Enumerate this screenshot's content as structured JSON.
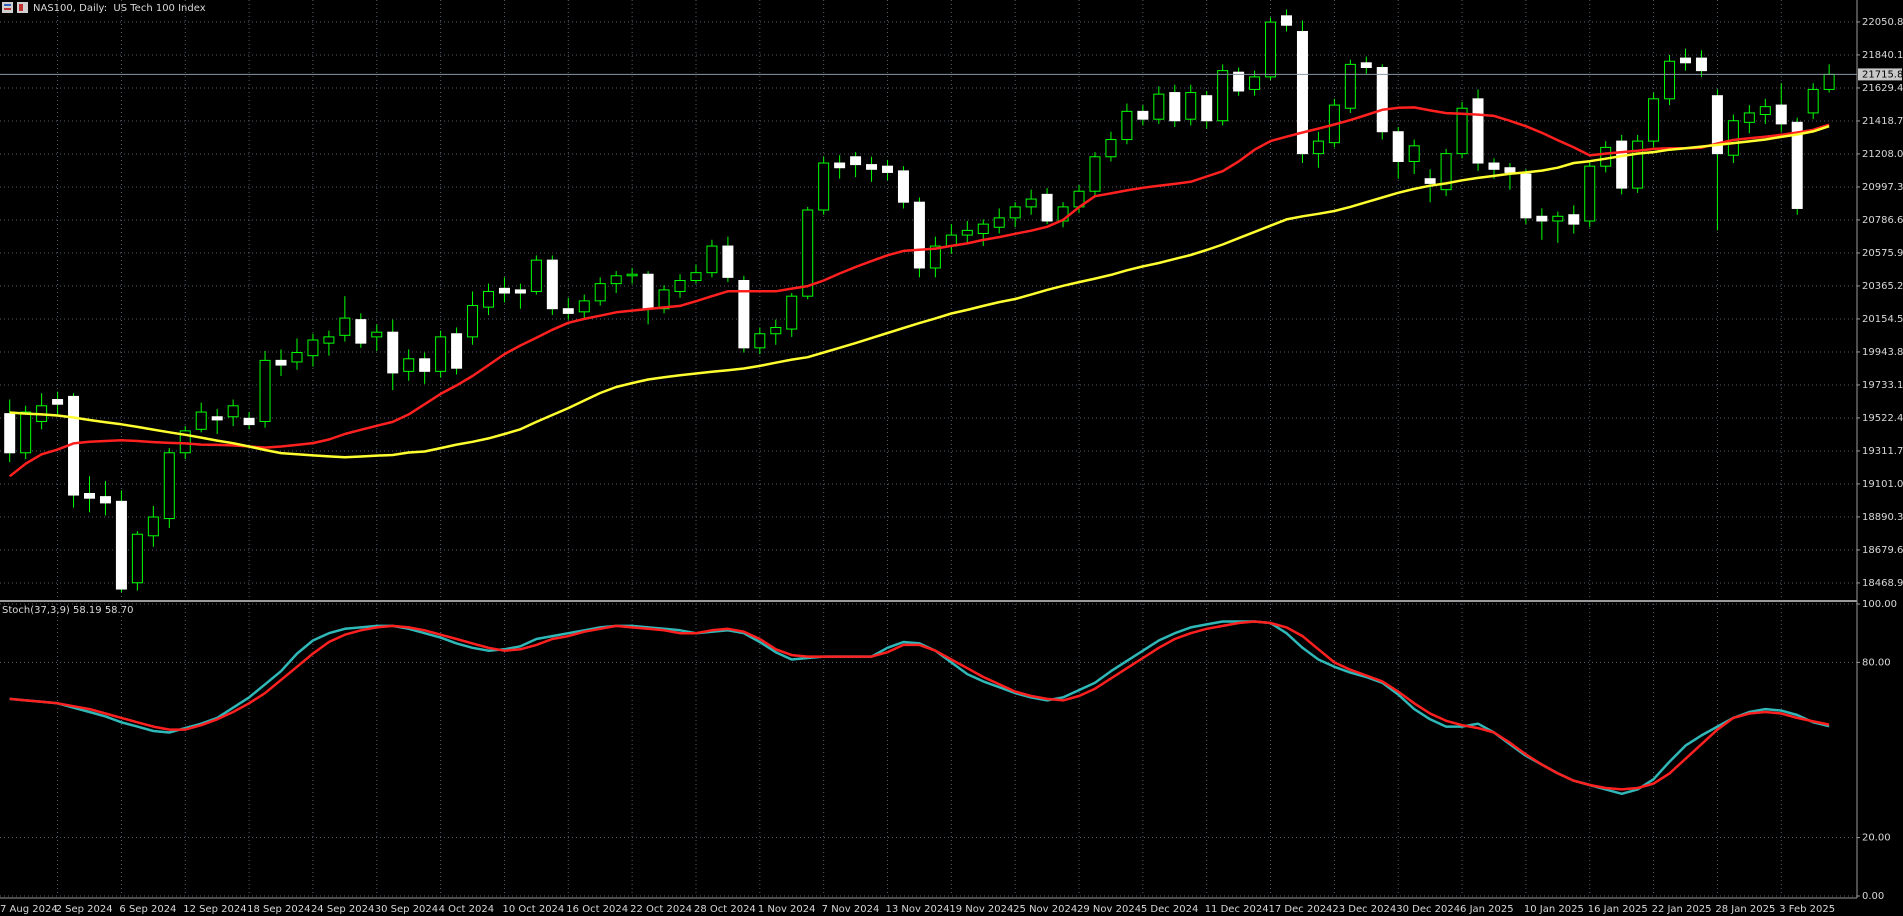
{
  "chart_data": [
    {
      "type": "candlestick",
      "title": "NAS100, Daily:  US Tech 100 Index",
      "categories": [
        "7 Aug 2024",
        null,
        null,
        "2 Sep 2024",
        null,
        null,
        null,
        "6 Sep 2024",
        null,
        null,
        null,
        "12 Sep 2024",
        null,
        null,
        null,
        "18 Sep 2024",
        null,
        null,
        null,
        "24 Sep 2024",
        null,
        null,
        null,
        "30 Sep 2024",
        null,
        null,
        null,
        "4 Oct 2024",
        null,
        null,
        null,
        "10 Oct 2024",
        null,
        null,
        null,
        "16 Oct 2024",
        null,
        null,
        null,
        "22 Oct 2024",
        null,
        null,
        null,
        "28 Oct 2024",
        null,
        null,
        null,
        "1 Nov 2024",
        null,
        null,
        null,
        "7 Nov 2024",
        null,
        null,
        null,
        "13 Nov 2024",
        null,
        null,
        null,
        "19 Nov 2024",
        null,
        null,
        null,
        "25 Nov 2024",
        null,
        null,
        null,
        "29 Nov 2024",
        null,
        null,
        null,
        "5 Dec 2024",
        null,
        null,
        null,
        "11 Dec 2024",
        null,
        null,
        null,
        "17 Dec 2024",
        null,
        null,
        null,
        "23 Dec 2024",
        null,
        null,
        null,
        "30 Dec 2024",
        null,
        null,
        null,
        "6 Jan 2025",
        null,
        null,
        null,
        "10 Jan 2025",
        null,
        null,
        null,
        "16 Jan 2025",
        null,
        null,
        null,
        "22 Jan 2025",
        null,
        null,
        null,
        "28 Jan 2025",
        null,
        null,
        null,
        "3 Feb 2025",
        null,
        null,
        null
      ],
      "open": [
        19550,
        19300,
        19500,
        19640,
        19660,
        19040,
        19020,
        18990,
        18470,
        18770,
        18880,
        19300,
        19450,
        19530,
        19530,
        19520,
        19500,
        19890,
        19880,
        19920,
        20000,
        20050,
        20150,
        20040,
        20070,
        19820,
        19900,
        19820,
        20060,
        20040,
        20230,
        20350,
        20340,
        20330,
        20530,
        20220,
        20200,
        20270,
        20380,
        20430,
        20440,
        20220,
        20330,
        20400,
        20450,
        20620,
        20400,
        19970,
        20060,
        20090,
        20300,
        20850,
        21150,
        21190,
        21140,
        21130,
        21100,
        20900,
        20480,
        20620,
        20690,
        20700,
        20740,
        20800,
        20870,
        20950,
        20780,
        20870,
        20970,
        21190,
        21300,
        21480,
        21430,
        21600,
        21430,
        21580,
        21420,
        21730,
        21620,
        21700,
        22090,
        21990,
        21210,
        21280,
        21500,
        21790,
        21760,
        21350,
        21160,
        21050,
        20980,
        21210,
        21560,
        21150,
        21120,
        21080,
        20810,
        20780,
        20820,
        20780,
        21130,
        21290,
        20990,
        21290,
        21560,
        21820,
        21820,
        21580,
        21200,
        21410,
        21460,
        21520,
        21410,
        21470,
        21620
      ],
      "high": [
        19640,
        19600,
        19680,
        19690,
        19680,
        19150,
        19120,
        19060,
        18800,
        18960,
        19330,
        19470,
        19620,
        19580,
        19640,
        19560,
        19950,
        19960,
        20030,
        20060,
        20080,
        20300,
        20190,
        20120,
        20150,
        19960,
        19940,
        20080,
        20100,
        20330,
        20380,
        20420,
        20380,
        20560,
        20560,
        20290,
        20310,
        20420,
        20460,
        20480,
        20460,
        20370,
        20440,
        20500,
        20660,
        20680,
        20430,
        20100,
        20150,
        20320,
        20870,
        21190,
        21200,
        21220,
        21190,
        21170,
        21130,
        20930,
        20680,
        20760,
        20780,
        20790,
        20860,
        20900,
        20980,
        20990,
        20900,
        21010,
        21220,
        21350,
        21530,
        21520,
        21640,
        21650,
        21650,
        21610,
        21780,
        21760,
        21740,
        22080,
        22130,
        22060,
        21350,
        21560,
        21810,
        21830,
        21780,
        21380,
        21300,
        21110,
        21240,
        21540,
        21620,
        21180,
        21150,
        21110,
        20860,
        20840,
        20880,
        21160,
        21290,
        21330,
        21330,
        21600,
        21840,
        21880,
        21870,
        21620,
        21460,
        21520,
        21560,
        21660,
        21440,
        21660,
        21780
      ],
      "low": [
        19240,
        19260,
        19450,
        19540,
        18950,
        18920,
        18900,
        18410,
        18420,
        18700,
        18820,
        19260,
        19430,
        19420,
        19470,
        19450,
        19460,
        19790,
        19830,
        19850,
        19920,
        20010,
        19970,
        19950,
        19700,
        19760,
        19740,
        19780,
        19800,
        19990,
        20180,
        20260,
        20220,
        20310,
        20180,
        20150,
        20160,
        20240,
        20320,
        20380,
        20120,
        20190,
        20290,
        20380,
        20420,
        20390,
        19940,
        19930,
        19990,
        20040,
        20280,
        20820,
        21050,
        21060,
        21030,
        21040,
        20860,
        20420,
        20420,
        20570,
        20640,
        20620,
        20700,
        20740,
        20820,
        20760,
        20740,
        20830,
        20940,
        21160,
        21270,
        21390,
        21400,
        21380,
        21390,
        21370,
        21390,
        21580,
        21580,
        21680,
        21990,
        21150,
        21120,
        21250,
        21470,
        21720,
        21300,
        21050,
        21080,
        20900,
        20940,
        21180,
        21100,
        21050,
        20980,
        20760,
        20660,
        20640,
        20700,
        20740,
        21090,
        20950,
        20960,
        21250,
        21520,
        21740,
        21700,
        20720,
        21150,
        21340,
        21400,
        21350,
        20820,
        21430,
        21600
      ],
      "close": [
        19300,
        19560,
        19600,
        19610,
        19030,
        19010,
        18980,
        18430,
        18780,
        18890,
        19300,
        19440,
        19560,
        19510,
        19600,
        19480,
        19890,
        19860,
        19940,
        20020,
        20040,
        20160,
        20000,
        20070,
        19810,
        19900,
        19820,
        20040,
        19840,
        20240,
        20330,
        20320,
        20320,
        20530,
        20220,
        20190,
        20270,
        20380,
        20430,
        20440,
        20220,
        20340,
        20400,
        20450,
        20620,
        20420,
        19970,
        20060,
        20100,
        20300,
        20850,
        21150,
        21120,
        21140,
        21110,
        21090,
        20900,
        20480,
        20620,
        20690,
        20720,
        20760,
        20800,
        20870,
        20920,
        20780,
        20870,
        20970,
        21190,
        21300,
        21480,
        21430,
        21590,
        21420,
        21600,
        21420,
        21740,
        21610,
        21700,
        22050,
        22030,
        21210,
        21290,
        21520,
        21780,
        21760,
        21350,
        21160,
        21260,
        21020,
        21210,
        21500,
        21150,
        21110,
        21090,
        20800,
        20780,
        20810,
        20760,
        21130,
        21250,
        20990,
        21290,
        21560,
        21800,
        21790,
        21740,
        21210,
        21420,
        21470,
        21510,
        21400,
        20860,
        21620,
        21715.8
      ],
      "bull_fill": "#000000",
      "bear_fill": "#ffffff",
      "candle_color": "#00ff00",
      "series": [
        {
          "color": "#ff2020",
          "values": [
            19150,
            19230,
            19290,
            19320,
            19360,
            19370,
            19375,
            19380,
            19375,
            19368,
            19363,
            19360,
            19352,
            19350,
            19347,
            19340,
            19333,
            19340,
            19350,
            19362,
            19385,
            19420,
            19447,
            19472,
            19497,
            19545,
            19610,
            19676,
            19730,
            19790,
            19860,
            19930,
            19985,
            20035,
            20085,
            20130,
            20155,
            20175,
            20197,
            20208,
            20218,
            20228,
            20238,
            20268,
            20300,
            20331,
            20331,
            20331,
            20331,
            20348,
            20364,
            20400,
            20445,
            20486,
            20524,
            20561,
            20589,
            20596,
            20604,
            20621,
            20637,
            20659,
            20677,
            20698,
            20718,
            20743,
            20787,
            20868,
            20938,
            20956,
            20975,
            20992,
            21005,
            21017,
            21030,
            21064,
            21098,
            21160,
            21235,
            21290,
            21318,
            21345,
            21370,
            21396,
            21424,
            21457,
            21490,
            21503,
            21505,
            21486,
            21469,
            21465,
            21459,
            21451,
            21420,
            21385,
            21343,
            21296,
            21250,
            21199,
            21210,
            21220,
            21229,
            21240,
            21245,
            21245,
            21248,
            21275,
            21297,
            21308,
            21318,
            21330,
            21345,
            21362,
            21395
          ]
        },
        {
          "color": "#ffff30",
          "values": [
            19557,
            19550,
            19545,
            19538,
            19525,
            19509,
            19495,
            19482,
            19465,
            19448,
            19431,
            19415,
            19397,
            19378,
            19361,
            19340,
            19318,
            19298,
            19290,
            19283,
            19277,
            19272,
            19276,
            19282,
            19286,
            19302,
            19308,
            19330,
            19352,
            19370,
            19392,
            19420,
            19450,
            19497,
            19541,
            19585,
            19634,
            19682,
            19720,
            19745,
            19768,
            19782,
            19795,
            19806,
            19817,
            19827,
            19838,
            19855,
            19875,
            19895,
            19910,
            19940,
            19970,
            20000,
            20032,
            20065,
            20097,
            20128,
            20158,
            20189,
            20212,
            20238,
            20262,
            20282,
            20310,
            20340,
            20366,
            20390,
            20412,
            20436,
            20465,
            20490,
            20512,
            20538,
            20563,
            20595,
            20630,
            20670,
            20710,
            20750,
            20790,
            20810,
            20826,
            20844,
            20870,
            20900,
            20930,
            20960,
            20985,
            21005,
            21020,
            21040,
            21055,
            21068,
            21082,
            21090,
            21102,
            21120,
            21150,
            21162,
            21178,
            21195,
            21210,
            21220,
            21235,
            21245,
            21255,
            21266,
            21277,
            21288,
            21300,
            21317,
            21332,
            21352,
            21385
          ]
        }
      ],
      "last_price": 21715.8,
      "ylim": [
        18360,
        22191
      ],
      "yticks": [
        22050.8,
        21840.1,
        21629.4,
        21418.7,
        {
          "value": 21208,
          "label": "21208.0"
        },
        20997.3,
        20786.6,
        20575.9,
        20365.2,
        20154.5,
        19943.8,
        19733.1,
        19522.4,
        19311.7,
        {
          "value": 19101,
          "label": "19101.0"
        },
        18890.3,
        18679.6,
        18468.9
      ],
      "grid": true
    },
    {
      "type": "line",
      "title": "Stoch(37,3,9) 58.19 58.70",
      "series": [
        {
          "color": "#30b8b8",
          "values": [
            67.5,
            67,
            66.5,
            66,
            64.5,
            63,
            61.5,
            59.5,
            58,
            56.5,
            56,
            57.5,
            59,
            61,
            64.5,
            68,
            72.5,
            77,
            83,
            87.5,
            90,
            91.5,
            92,
            92.5,
            92.5,
            91.5,
            90,
            88.5,
            86.5,
            85,
            84,
            84.5,
            85.5,
            88,
            89,
            90,
            91,
            92,
            92.5,
            92.5,
            92,
            91.5,
            91,
            90,
            90.5,
            91,
            90,
            87,
            83.5,
            81,
            81.5,
            82,
            82,
            82,
            82,
            85,
            87,
            86.5,
            84,
            80,
            76,
            73.5,
            71.5,
            69.5,
            68,
            67,
            68,
            70.5,
            73,
            77,
            80.5,
            84,
            87.5,
            90,
            92,
            93,
            94,
            94,
            94,
            93.5,
            90,
            85,
            81,
            78.5,
            76.5,
            75,
            73,
            69,
            64,
            60.5,
            58,
            58,
            59,
            56,
            52,
            48,
            45,
            42,
            39.5,
            38,
            36.5,
            35,
            36.5,
            40,
            46,
            51.5,
            55,
            58,
            61,
            63,
            64,
            63.5,
            62,
            59.5,
            58.19
          ]
        },
        {
          "color": "#ff2020",
          "values": [
            67.5,
            67,
            66.5,
            66,
            65,
            64,
            62.5,
            61,
            59.5,
            58,
            57,
            57,
            58.5,
            60.5,
            63,
            66,
            69.5,
            74,
            78.5,
            83,
            87,
            89.5,
            91,
            92,
            92.5,
            92,
            91,
            89.5,
            88,
            86.5,
            85,
            84,
            84.5,
            86,
            88,
            89,
            90.5,
            91.5,
            92.5,
            92,
            91.5,
            91,
            90,
            90,
            91,
            91.5,
            90.5,
            88,
            84.5,
            82.5,
            82,
            82,
            82,
            82,
            82,
            83.5,
            86,
            86,
            84,
            81,
            78,
            75,
            72.5,
            70,
            68.5,
            67.5,
            67,
            68.5,
            71,
            74.5,
            78,
            81.5,
            85,
            88,
            90,
            91.5,
            92.5,
            93.5,
            94,
            93.5,
            92,
            89,
            84.5,
            80,
            77.5,
            75.5,
            73.5,
            70,
            66,
            62.5,
            60,
            58.5,
            57.5,
            56,
            52.5,
            48.5,
            45,
            42,
            39.5,
            38,
            37,
            36.5,
            37,
            38.5,
            42,
            47,
            52,
            57,
            61,
            62.5,
            63,
            62.5,
            61,
            59.8,
            58.7
          ]
        }
      ],
      "ylim": [
        0,
        100
      ],
      "yticks": [
        {
          "value": 100,
          "label": "100.00"
        },
        {
          "value": 80,
          "label": "80.00"
        },
        {
          "value": 20,
          "label": "20.00"
        },
        {
          "value": 0,
          "label": "0.00"
        }
      ],
      "grid": true
    }
  ]
}
